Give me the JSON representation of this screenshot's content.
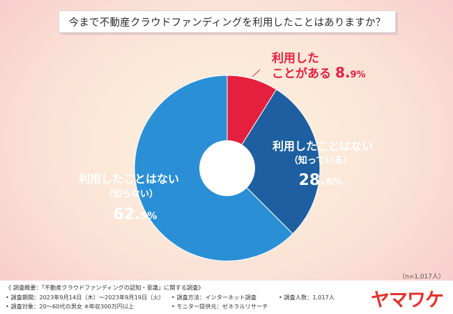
{
  "title": "今まで不動産クラウドファンディングを利用したことはありますか？",
  "sample_size": "（n=1,017人）",
  "chart_data": {
    "type": "pie",
    "title": "今まで不動産クラウドファンディングを利用したことはありますか？",
    "slices": [
      {
        "label_lines": [
          "利用した",
          "ことがある"
        ],
        "value": 8.9,
        "value_int": "8.",
        "value_dec": "9",
        "unit": "%",
        "color": "#e5203f",
        "label_color": "#e5203f"
      },
      {
        "label_lines": [
          "利用したことはない",
          "（知っている）"
        ],
        "value": 28.6,
        "value_int": "28.",
        "value_dec": "6",
        "unit": "%",
        "color": "#1d5fa0",
        "label_color": "#ffffff"
      },
      {
        "label_lines": [
          "利用したことはない",
          "（知らない）"
        ],
        "value": 62.5,
        "value_int": "62.",
        "value_dec": "5",
        "unit": "%",
        "color": "#2b8fd6",
        "label_color": "#ffffff"
      }
    ]
  },
  "footnotes": {
    "overview": "《 調査概要：「不動産クラウドファンディングの認知・意識」に関する調査》",
    "period": "• 調査期間：2023年9月14日（木）〜2023年9月19日（火）",
    "method": "• 調査方法：インターネット調査",
    "count": "• 調査人数：1,017人",
    "target": "• 調査対象：20〜60代の男女 ※年収300万円以上",
    "provider": "• モニター提供元：ゼネラルリサーチ"
  },
  "logo": "ヤマワケ",
  "colors": {
    "accent": "#e5322f"
  }
}
